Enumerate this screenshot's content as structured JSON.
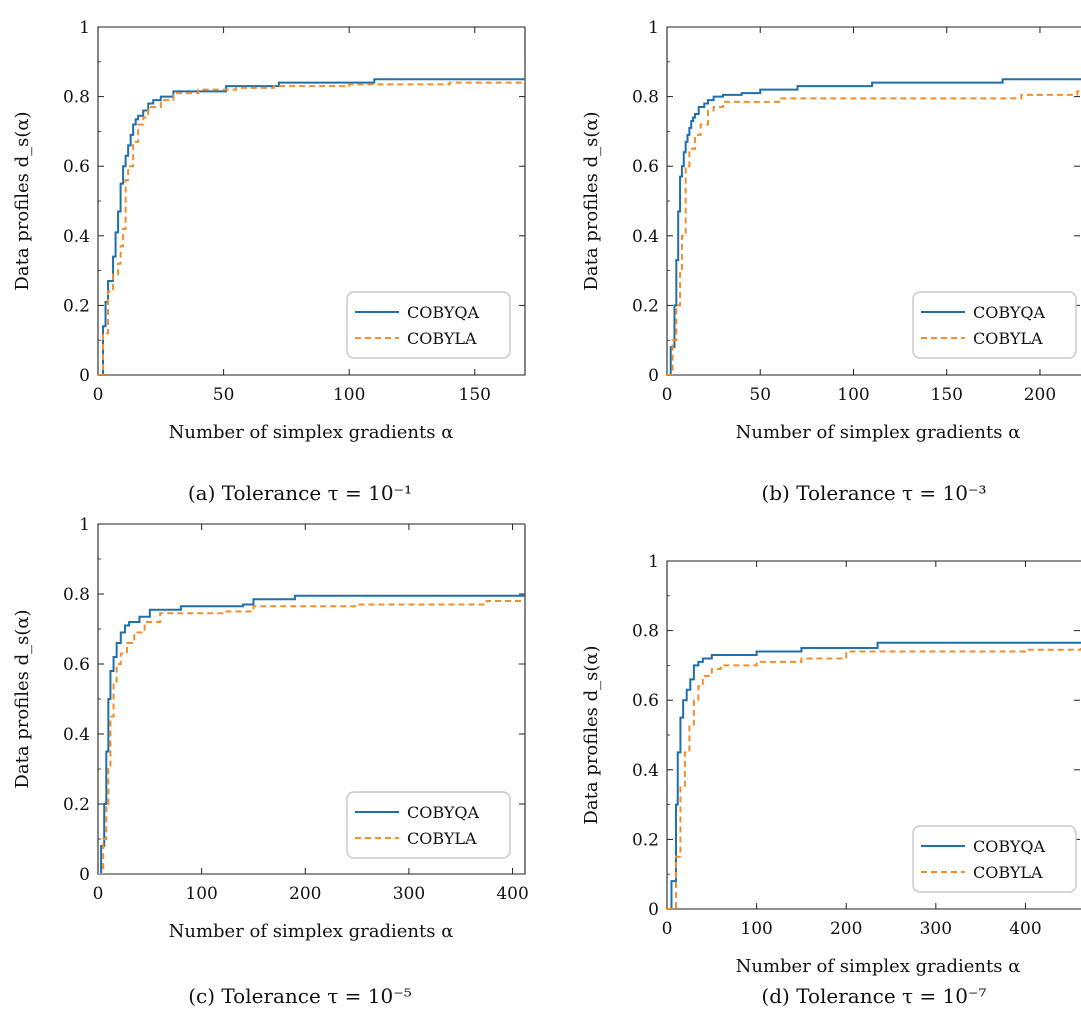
{
  "chart_data": [
    {
      "type": "line",
      "caption": "(a) Tolerance τ = 10⁻¹",
      "xlabel": "Number of simplex gradients α",
      "ylabel": "Data profiles d_s(α)",
      "xlim": [
        0,
        170
      ],
      "ylim": [
        0,
        1
      ],
      "xticks": [
        "0",
        "50",
        "100",
        "150"
      ],
      "yticks": [
        "0",
        "0.2",
        "0.4",
        "0.6",
        "0.8",
        "1"
      ],
      "legend_position": "bottom-right",
      "series": [
        {
          "name": "COBYQA",
          "color": "#1f6fad",
          "style": "solid",
          "x": [
            0,
            2,
            3,
            4,
            6,
            7,
            8,
            9,
            10,
            11,
            12,
            13,
            14,
            15,
            16,
            18,
            20,
            22,
            25,
            30,
            50,
            51,
            70,
            72,
            108,
            110,
            170
          ],
          "y": [
            0,
            0.14,
            0.21,
            0.27,
            0.34,
            0.41,
            0.47,
            0.55,
            0.6,
            0.63,
            0.66,
            0.69,
            0.72,
            0.735,
            0.745,
            0.76,
            0.78,
            0.79,
            0.8,
            0.815,
            0.815,
            0.83,
            0.83,
            0.84,
            0.84,
            0.85,
            0.85
          ]
        },
        {
          "name": "COBYLA",
          "color": "#f28e2b",
          "style": "dashed",
          "x": [
            0,
            2,
            4,
            6,
            8,
            9,
            10,
            11,
            12,
            14,
            16,
            18,
            20,
            25,
            30,
            40,
            55,
            70,
            100,
            140,
            170
          ],
          "y": [
            0,
            0.12,
            0.24,
            0.29,
            0.32,
            0.37,
            0.42,
            0.56,
            0.6,
            0.67,
            0.72,
            0.74,
            0.77,
            0.79,
            0.81,
            0.82,
            0.825,
            0.83,
            0.835,
            0.84,
            0.845
          ]
        }
      ]
    },
    {
      "type": "line",
      "caption": "(b) Tolerance τ = 10⁻³",
      "xlabel": "Number of simplex gradients α",
      "ylabel": "Data profiles d_s(α)",
      "xlim": [
        0,
        222
      ],
      "ylim": [
        0,
        1
      ],
      "xticks": [
        "0",
        "50",
        "100",
        "150",
        "200"
      ],
      "yticks": [
        "0",
        "0.2",
        "0.4",
        "0.6",
        "0.8",
        "1"
      ],
      "legend_position": "bottom-right",
      "series": [
        {
          "name": "COBYQA",
          "color": "#1f6fad",
          "style": "solid",
          "x": [
            0,
            2,
            4,
            5,
            6,
            7,
            8,
            9,
            10,
            11,
            12,
            13,
            14,
            15,
            17,
            20,
            22,
            25,
            30,
            40,
            50,
            70,
            110,
            180,
            222
          ],
          "y": [
            0,
            0.08,
            0.2,
            0.33,
            0.47,
            0.57,
            0.6,
            0.64,
            0.67,
            0.69,
            0.71,
            0.73,
            0.74,
            0.75,
            0.77,
            0.78,
            0.79,
            0.8,
            0.805,
            0.81,
            0.82,
            0.83,
            0.84,
            0.85,
            0.85
          ]
        },
        {
          "name": "COBYLA",
          "color": "#f28e2b",
          "style": "dashed",
          "x": [
            0,
            3,
            5,
            7,
            8,
            10,
            12,
            15,
            18,
            22,
            25,
            30,
            60,
            120,
            190,
            220,
            222
          ],
          "y": [
            0,
            0.1,
            0.2,
            0.3,
            0.4,
            0.6,
            0.65,
            0.69,
            0.72,
            0.76,
            0.77,
            0.785,
            0.795,
            0.795,
            0.805,
            0.815,
            0.815
          ]
        }
      ]
    },
    {
      "type": "line",
      "caption": "(c) Tolerance τ = 10⁻⁵",
      "xlabel": "Number of simplex gradients α",
      "ylabel": "Data profiles d_s(α)",
      "xlim": [
        0,
        412
      ],
      "ylim": [
        0,
        1
      ],
      "xticks": [
        "0",
        "100",
        "200",
        "300",
        "400"
      ],
      "yticks": [
        "0",
        "0.2",
        "0.4",
        "0.6",
        "0.8",
        "1"
      ],
      "legend_position": "bottom-right",
      "series": [
        {
          "name": "COBYQA",
          "color": "#1f6fad",
          "style": "solid",
          "x": [
            0,
            3,
            6,
            8,
            10,
            12,
            15,
            18,
            22,
            26,
            30,
            40,
            50,
            80,
            140,
            150,
            190,
            412
          ],
          "y": [
            0,
            0.08,
            0.2,
            0.35,
            0.5,
            0.58,
            0.62,
            0.66,
            0.69,
            0.71,
            0.72,
            0.735,
            0.755,
            0.765,
            0.77,
            0.785,
            0.795,
            0.795
          ]
        },
        {
          "name": "COBYLA",
          "color": "#f28e2b",
          "style": "dashed",
          "x": [
            0,
            5,
            8,
            10,
            12,
            15,
            18,
            22,
            28,
            35,
            45,
            60,
            120,
            150,
            250,
            375,
            412
          ],
          "y": [
            0,
            0.1,
            0.2,
            0.3,
            0.45,
            0.55,
            0.6,
            0.63,
            0.66,
            0.69,
            0.72,
            0.745,
            0.75,
            0.765,
            0.77,
            0.78,
            0.78
          ]
        }
      ]
    },
    {
      "type": "line",
      "caption": "(d) Tolerance τ = 10⁻⁷",
      "xlabel": "Number of simplex gradients α",
      "ylabel": "Data profiles d_s(α)",
      "xlim": [
        0,
        462
      ],
      "ylim": [
        0,
        1
      ],
      "xticks": [
        "0",
        "100",
        "200",
        "300",
        "400"
      ],
      "yticks": [
        "0",
        "0.2",
        "0.4",
        "0.6",
        "0.8",
        "1"
      ],
      "legend_position": "bottom-right",
      "series": [
        {
          "name": "COBYQA",
          "color": "#1f6fad",
          "style": "solid",
          "x": [
            0,
            5,
            10,
            12,
            15,
            18,
            22,
            26,
            30,
            35,
            40,
            50,
            60,
            100,
            150,
            230,
            235,
            462
          ],
          "y": [
            0,
            0.08,
            0.3,
            0.45,
            0.55,
            0.6,
            0.63,
            0.66,
            0.7,
            0.71,
            0.72,
            0.73,
            0.73,
            0.74,
            0.75,
            0.75,
            0.765,
            0.765
          ]
        },
        {
          "name": "COBYLA",
          "color": "#f28e2b",
          "style": "dashed",
          "x": [
            0,
            10,
            15,
            20,
            25,
            30,
            35,
            40,
            50,
            60,
            100,
            150,
            200,
            400,
            462
          ],
          "y": [
            0,
            0.15,
            0.35,
            0.45,
            0.53,
            0.6,
            0.64,
            0.67,
            0.69,
            0.7,
            0.71,
            0.72,
            0.74,
            0.745,
            0.75
          ]
        }
      ]
    }
  ]
}
